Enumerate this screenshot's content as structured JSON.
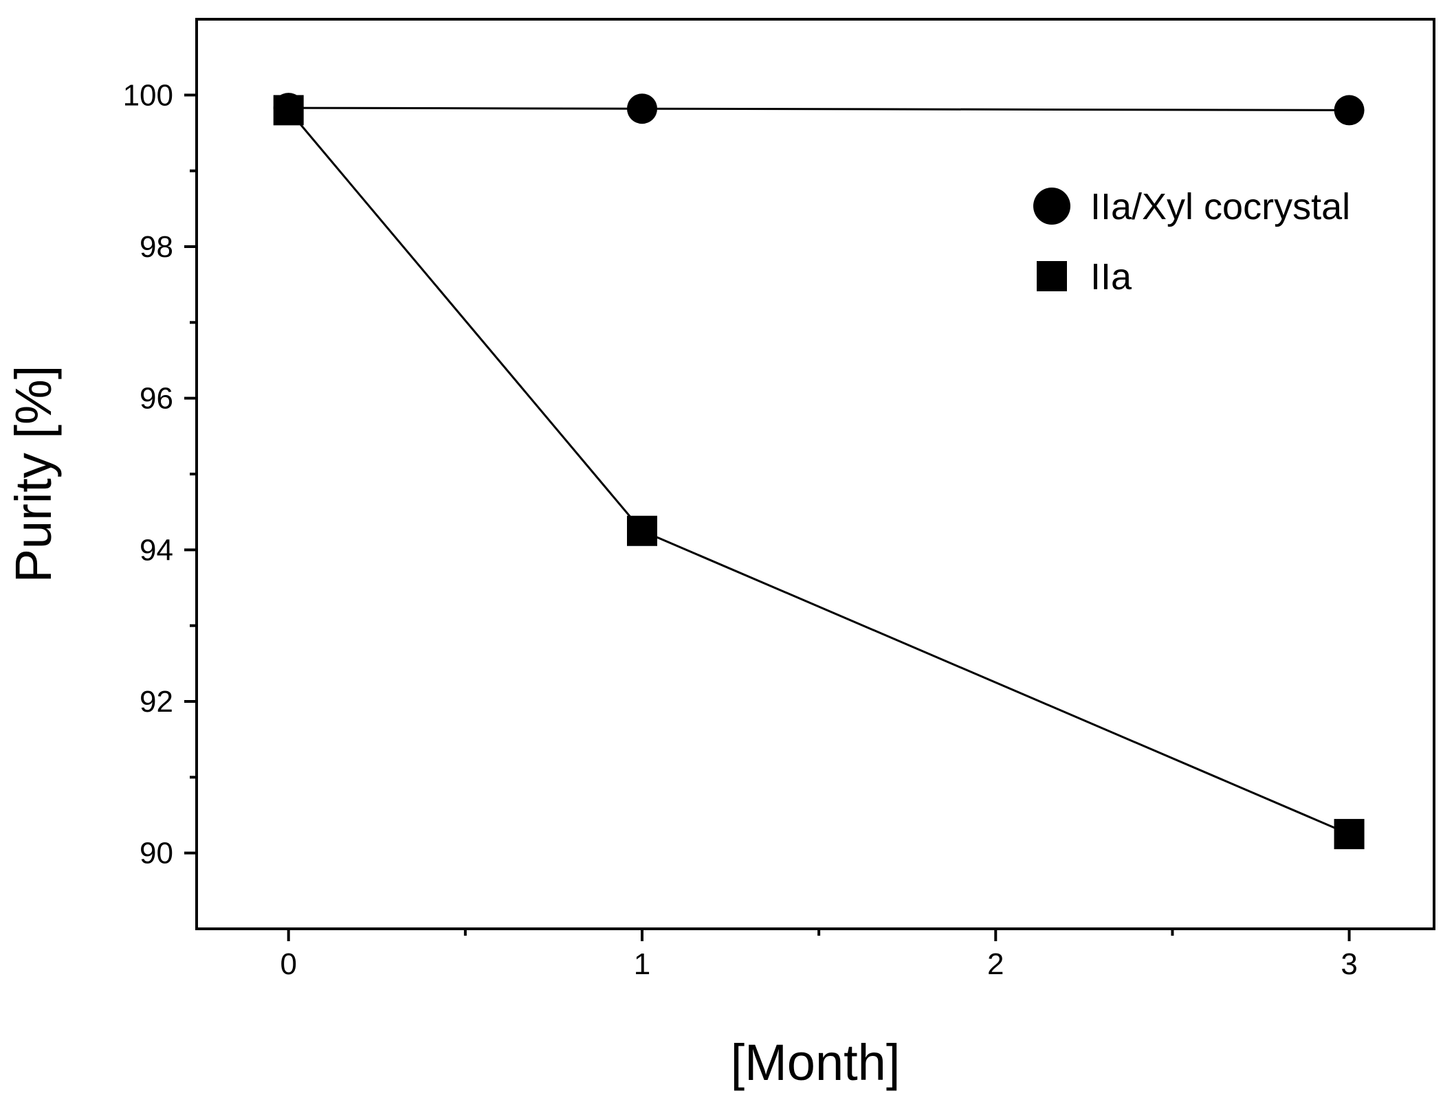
{
  "chart_data": {
    "type": "line",
    "title": "",
    "xlabel": "[Month]",
    "ylabel": "Purity [%]",
    "xlim": [
      -0.26,
      3.24
    ],
    "ylim": [
      89.0,
      101.0
    ],
    "x_ticks": [
      0,
      1,
      2,
      3
    ],
    "x_tick_labels": [
      "0",
      "1",
      "2",
      "3"
    ],
    "x_minor_ticks": [
      0.5,
      1.5,
      2.5
    ],
    "y_ticks": [
      90,
      92,
      94,
      96,
      98,
      100
    ],
    "y_tick_labels": [
      "90",
      "92",
      "94",
      "96",
      "98",
      "100"
    ],
    "y_minor_ticks": [
      91,
      93,
      95,
      97,
      99
    ],
    "grid": false,
    "legend_position": "top-right",
    "series": [
      {
        "name": "IIa/Xyl cocrystal",
        "marker": "circle",
        "color": "#000000",
        "x": [
          0,
          1,
          3
        ],
        "y": [
          99.83,
          99.82,
          99.8
        ]
      },
      {
        "name": "IIa",
        "marker": "square",
        "color": "#000000",
        "x": [
          0,
          1,
          3
        ],
        "y": [
          99.8,
          94.25,
          90.25
        ]
      }
    ]
  }
}
